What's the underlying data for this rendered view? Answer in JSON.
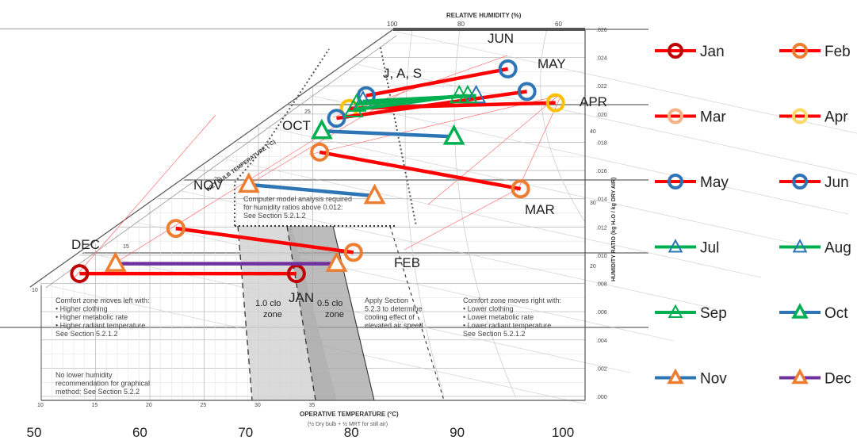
{
  "chart_data": {
    "type": "line",
    "title": "",
    "xlabel": "",
    "ylabel": "",
    "x_axis": {
      "ticks": [
        50,
        60,
        70,
        80,
        90,
        100
      ],
      "range": [
        50,
        100
      ]
    },
    "background_chart": {
      "title": "RELATIVE HUMIDITY",
      "title_unit": "(%)",
      "xlabel": "OPERATIVE TEMPERATURE",
      "xlabel_unit": "(°C)",
      "xlabel_note": "(½ Dry bulb + ½ MRT for still air)",
      "ylabel": "HUMIDITY RATIO",
      "ylabel_unit": "(kg H₂O / kg DRY AIR)",
      "diagonal_label": "WET BULB TEMPERATURE",
      "diagonal_unit": "(°C)",
      "x_ticks": [
        "10",
        "15",
        "20",
        "25",
        "30",
        "35"
      ],
      "y_ticks": [
        ".026",
        ".024",
        ".022",
        ".020",
        ".018",
        ".016",
        ".014",
        ".012",
        ".010",
        ".008",
        ".006",
        ".004",
        ".002",
        ".000"
      ],
      "rh_ticks": [
        "100",
        "80",
        "60"
      ],
      "wetbulb_ticks": [
        "10",
        "15",
        "20",
        "25"
      ],
      "dewpoint_ticks": [
        "40",
        "30",
        "20"
      ],
      "zone_labels": [
        "1.0 clo zone",
        "0.5 clo zone"
      ],
      "notes": {
        "left": [
          "Comfort zone moves left with:",
          "• Higher clothing",
          "• Higher metabolic rate",
          "• Higher radiant temperature",
          "See Section 5.2.1.2"
        ],
        "right": [
          "Comfort zone moves right with:",
          "• Lower clothing",
          "• Lower metabolic rate",
          "• Lower radiant temperature",
          "See Section 5.2.1.2"
        ],
        "middle": [
          "Apply Section",
          "5.2.3 to determine",
          "cooling effect of",
          "elevated air speed"
        ],
        "top": [
          "Computer model analysis required",
          "for humidity ratios above 0.012:",
          "See Section 5.2.1.2"
        ],
        "bottom": [
          "No lower humidity",
          "recommendation for graphical",
          "method: See Section 5.2.2"
        ]
      }
    },
    "series": [
      {
        "name": "Jan",
        "color": "#c00000",
        "marker": "circle",
        "x": [
          54.3,
          74.8
        ],
        "y": [
          0.0087,
          0.0087
        ],
        "label": "JAN"
      },
      {
        "name": "Feb",
        "color": "#ed7d31",
        "marker": "circle",
        "x": [
          63.4,
          80.2
        ],
        "y": [
          0.0119,
          0.0102
        ],
        "label": "FEB"
      },
      {
        "name": "Mar",
        "color": "#ed7d31",
        "marker": "circle",
        "x": [
          77.0,
          96.0
        ],
        "y": [
          0.0173,
          0.0147
        ],
        "label": "MAR"
      },
      {
        "name": "Apr",
        "color": "#ffc000",
        "marker": "circle",
        "x": [
          79.8,
          99.3
        ],
        "y": [
          0.0204,
          0.0208
        ],
        "label": "APR"
      },
      {
        "name": "May",
        "color": "#2e75b6",
        "marker": "circle",
        "x": [
          78.6,
          96.6
        ],
        "y": [
          0.0197,
          0.0216
        ],
        "label": "MAY"
      },
      {
        "name": "Jun",
        "color": "#2e75b6",
        "marker": "circle",
        "x": [
          81.4,
          94.8
        ],
        "y": [
          0.0213,
          0.0232
        ],
        "label": "JUN"
      },
      {
        "name": "Jul",
        "color": "#2e75b6",
        "marker": "triangle-open",
        "x": [
          81.1,
          91.8
        ],
        "y": [
          0.0209,
          0.0213
        ]
      },
      {
        "name": "Aug",
        "color": "#00b050",
        "marker": "triangle-open",
        "x": [
          80.5,
          91.0
        ],
        "y": [
          0.0207,
          0.0213
        ]
      },
      {
        "name": "Sep",
        "color": "#00b050",
        "marker": "triangle-open",
        "x": [
          80.2,
          90.2
        ],
        "y": [
          0.0203,
          0.0213
        ],
        "label": "J, A, S"
      },
      {
        "name": "Oct",
        "color": "#00b050",
        "marker": "triangle",
        "x": [
          77.2,
          89.7
        ],
        "y": [
          0.0188,
          0.0184
        ],
        "label": "OCT"
      },
      {
        "name": "Nov",
        "color": "#ed7d31",
        "marker": "triangle",
        "x": [
          70.3,
          82.2
        ],
        "y": [
          0.015,
          0.0142
        ],
        "label": "NOV"
      },
      {
        "name": "Dec",
        "color": "#ed7d31",
        "marker": "triangle",
        "x": [
          57.7,
          78.6
        ],
        "y": [
          0.0094,
          0.0094
        ],
        "label": "DEC"
      }
    ],
    "legend": {
      "placement": "right",
      "entries": [
        {
          "name": "Jan",
          "line_color": "#ff0000",
          "marker_color": "#c00000",
          "marker": "circle"
        },
        {
          "name": "Feb",
          "line_color": "#ff0000",
          "marker_color": "#ed7d31",
          "marker": "circle"
        },
        {
          "name": "Mar",
          "line_color": "#ff0000",
          "marker_color": "#f4b183",
          "marker": "circle"
        },
        {
          "name": "Apr",
          "line_color": "#ff0000",
          "marker_color": "#ffd966",
          "marker": "circle"
        },
        {
          "name": "May",
          "line_color": "#ff0000",
          "marker_color": "#2e75b6",
          "marker": "circle"
        },
        {
          "name": "Jun",
          "line_color": "#ff0000",
          "marker_color": "#2e75b6",
          "marker": "circle"
        },
        {
          "name": "Jul",
          "line_color": "#00b050",
          "marker_color": "#2e75b6",
          "marker": "triangle-open"
        },
        {
          "name": "Aug",
          "line_color": "#00b050",
          "marker_color": "#2e75b6",
          "marker": "triangle-open"
        },
        {
          "name": "Sep",
          "line_color": "#00b050",
          "marker_color": "#00b050",
          "marker": "triangle-open"
        },
        {
          "name": "Oct",
          "line_color": "#2e75b6",
          "marker_color": "#00b050",
          "marker": "triangle"
        },
        {
          "name": "Nov",
          "line_color": "#2e75b6",
          "marker_color": "#ed7d31",
          "marker": "triangle"
        },
        {
          "name": "Dec",
          "line_color": "#7030a0",
          "marker_color": "#ed7d31",
          "marker": "triangle"
        }
      ]
    }
  }
}
